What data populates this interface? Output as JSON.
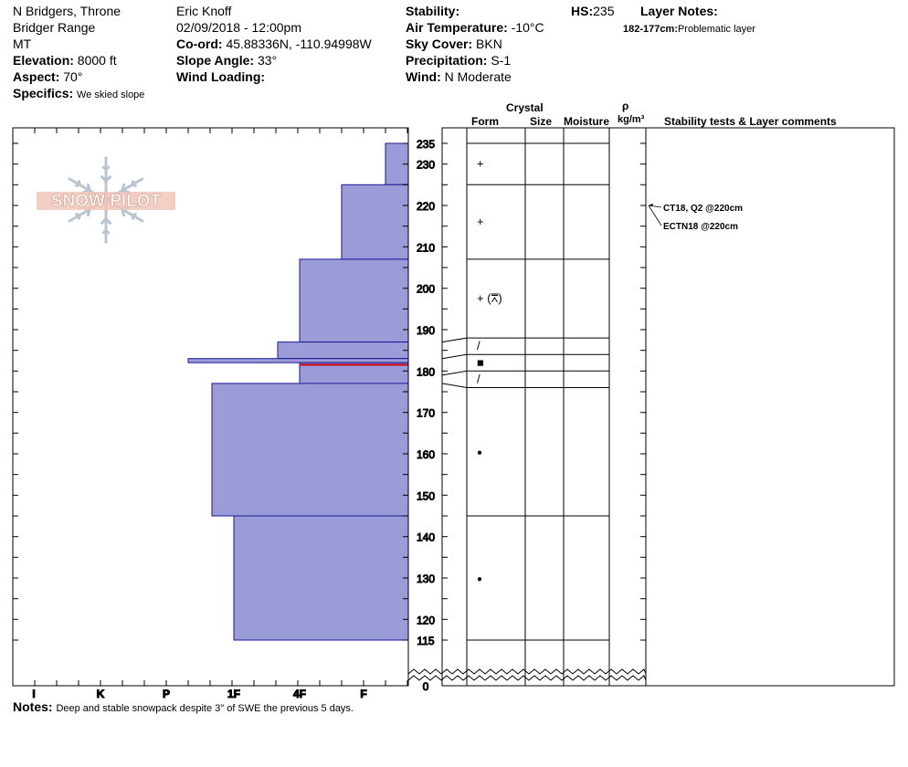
{
  "header": {
    "location": "N Bridgers, Throne",
    "range": "Bridger Range",
    "state": "MT",
    "elevation_label": "Elevation:",
    "elevation": "8000 ft",
    "aspect_label": "Aspect:",
    "aspect": "70°",
    "specifics_label": "Specifics:",
    "specifics": "We skied slope",
    "observer": "Eric Knoff",
    "datetime": "02/09/2018 - 12:00pm",
    "coord_label": "Co-ord:",
    "coord": "45.88336N, -110.94998W",
    "slope_label": "Slope Angle:",
    "slope": "33°",
    "wind_loading_label": "Wind Loading:",
    "wind_loading": "",
    "stability_label": "Stability:",
    "stability": "",
    "air_temp_label": "Air Temperature:",
    "air_temp": "-10°C",
    "sky_label": "Sky Cover:",
    "sky": "BKN",
    "precip_label": "Precipitation:",
    "precip": "S-1",
    "wind_label": "Wind:",
    "wind": "N Moderate",
    "hs_label": "HS:",
    "hs": "235",
    "layer_notes_label": "Layer Notes:",
    "layer_note_range": "182-177cm:",
    "layer_note_text": "Problematic layer"
  },
  "logo": {
    "text": "SNOW PILOT"
  },
  "columns": {
    "crystal": "Crystal",
    "form": "Form",
    "size": "Size",
    "moisture": "Moisture",
    "rho": "ρ",
    "density_unit": "kg/m³",
    "comments": "Stability tests & Layer comments"
  },
  "notes_label": "Notes:",
  "notes": "Deep and stable snowpack despite 3\" of SWE the previous 5 days.",
  "colors": {
    "hardness_fill": "#9b9bd7",
    "hardness_edge": "#1a1a9a",
    "problem_line": "#cc0000"
  },
  "chart_data": {
    "type": "snow_profile",
    "depth_unit": "cm",
    "depth_ticks": [
      235,
      230,
      220,
      210,
      200,
      190,
      180,
      170,
      160,
      150,
      140,
      130,
      120,
      115,
      0
    ],
    "hardness_scale": [
      "I",
      "K",
      "P",
      "1F",
      "4F",
      "F"
    ],
    "layers": [
      {
        "top": 235,
        "bottom": 225,
        "hardness": "F-"
      },
      {
        "top": 225,
        "bottom": 207,
        "hardness": "F+"
      },
      {
        "top": 207,
        "bottom": 187,
        "hardness": "4F"
      },
      {
        "top": 187,
        "bottom": 183,
        "hardness": "4F+"
      },
      {
        "top": 183,
        "bottom": 182,
        "hardness": "P-"
      },
      {
        "top": 182,
        "bottom": 177,
        "hardness": "4F"
      },
      {
        "top": 177,
        "bottom": 145,
        "hardness": "1F+"
      },
      {
        "top": 145,
        "bottom": 115,
        "hardness": "1F"
      }
    ],
    "problem_layer_depth": 181.5,
    "profile_bottom": 115,
    "form_table": [
      {
        "top": 235,
        "bottom": 225,
        "form": "+"
      },
      {
        "top": 225,
        "bottom": 207,
        "form": "+"
      },
      {
        "top": 207,
        "bottom": 188,
        "form": "+ (⩞)"
      },
      {
        "top": 188,
        "bottom": 184,
        "form": "/"
      },
      {
        "top": 184,
        "bottom": 180,
        "form": "■"
      },
      {
        "top": 180,
        "bottom": 176,
        "form": "/"
      },
      {
        "top": 176,
        "bottom": 145,
        "form": "●"
      },
      {
        "top": 145,
        "bottom": 115,
        "form": "●"
      }
    ],
    "tests": [
      {
        "depth": 220,
        "label": "CT18, Q2 @220cm"
      },
      {
        "depth": 220,
        "label": "ECTN18 @220cm"
      }
    ]
  }
}
